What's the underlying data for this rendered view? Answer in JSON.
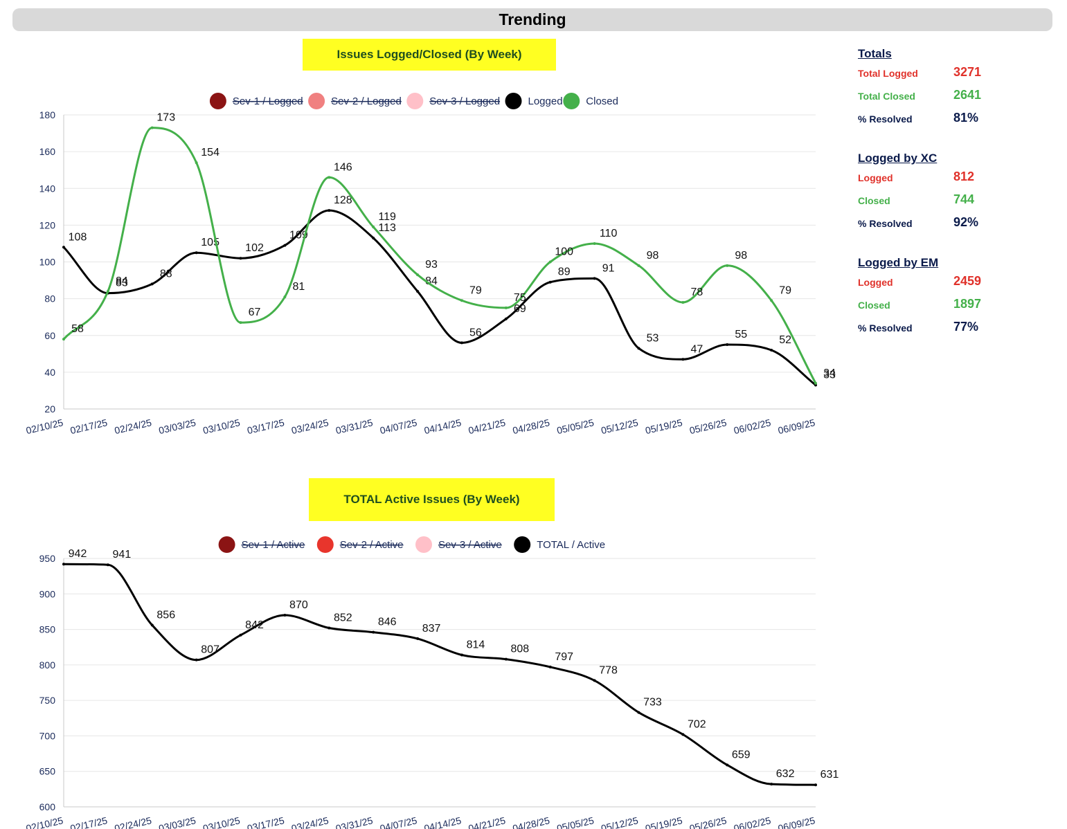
{
  "header": {
    "title": "Trending"
  },
  "colors": {
    "logged": "#000000",
    "closed": "#44b04a",
    "sev1": "#8b1414",
    "sev2_logged": "#f08080",
    "sev2_active": "#e8352c",
    "sev3": "#ffc0c8"
  },
  "side": {
    "sections": [
      {
        "title": "Totals",
        "rows": [
          {
            "label": "Total Logged",
            "value": "3271",
            "color": "red"
          },
          {
            "label": "Total Closed",
            "value": "2641",
            "color": "green"
          },
          {
            "label": "% Resolved",
            "value": "81%",
            "color": "navy"
          }
        ]
      },
      {
        "title": "Logged by XC",
        "rows": [
          {
            "label": "Logged",
            "value": "812",
            "color": "red"
          },
          {
            "label": "Closed",
            "value": "744",
            "color": "green"
          },
          {
            "label": "% Resolved",
            "value": "92%",
            "color": "navy"
          }
        ]
      },
      {
        "title": "Logged by EM",
        "rows": [
          {
            "label": "Logged",
            "value": "2459",
            "color": "red"
          },
          {
            "label": "Closed",
            "value": "1897",
            "color": "green"
          },
          {
            "label": "% Resolved",
            "value": "77%",
            "color": "navy"
          }
        ]
      }
    ]
  },
  "chart_data": [
    {
      "type": "line",
      "title": "Issues Logged/Closed (By Week)",
      "categories": [
        "02/10/25",
        "02/17/25",
        "02/24/25",
        "03/03/25",
        "03/10/25",
        "03/17/25",
        "03/24/25",
        "03/31/25",
        "04/07/25",
        "04/14/25",
        "04/21/25",
        "04/28/25",
        "05/05/25",
        "05/12/25",
        "05/19/25",
        "05/26/25",
        "06/02/25",
        "06/09/25"
      ],
      "ylim": [
        20,
        180
      ],
      "yticks": [
        20,
        40,
        60,
        80,
        100,
        120,
        140,
        160,
        180
      ],
      "grid": true,
      "legend_position": "top",
      "legend": [
        {
          "name": "Sev-1 / Logged",
          "color": "#8b1414",
          "hidden": true
        },
        {
          "name": "Sev-2 / Logged",
          "color": "#f08080",
          "hidden": true
        },
        {
          "name": "Sev-3 / Logged",
          "color": "#ffc0c8",
          "hidden": true
        },
        {
          "name": "Logged",
          "color": "#000000",
          "hidden": false
        },
        {
          "name": "Closed",
          "color": "#44b04a",
          "hidden": false
        }
      ],
      "series": [
        {
          "name": "Logged",
          "color": "#000000",
          "values": [
            108,
            83,
            88,
            105,
            102,
            109,
            128,
            113,
            84,
            56,
            69,
            89,
            91,
            53,
            47,
            55,
            52,
            33
          ]
        },
        {
          "name": "Closed",
          "color": "#44b04a",
          "values": [
            58,
            84,
            173,
            154,
            67,
            81,
            146,
            119,
            93,
            79,
            75,
            100,
            110,
            98,
            78,
            98,
            79,
            34
          ]
        }
      ]
    },
    {
      "type": "line",
      "title": "TOTAL Active Issues (By Week)",
      "categories": [
        "02/10/25",
        "02/17/25",
        "02/24/25",
        "03/03/25",
        "03/10/25",
        "03/17/25",
        "03/24/25",
        "03/31/25",
        "04/07/25",
        "04/14/25",
        "04/21/25",
        "04/28/25",
        "05/05/25",
        "05/12/25",
        "05/19/25",
        "05/26/25",
        "06/02/25",
        "06/09/25"
      ],
      "ylim": [
        600,
        950
      ],
      "yticks": [
        600,
        650,
        700,
        750,
        800,
        850,
        900,
        950
      ],
      "grid": true,
      "legend_position": "top",
      "legend": [
        {
          "name": "Sev-1 / Active",
          "color": "#8b1414",
          "hidden": true
        },
        {
          "name": "Sev-2 / Active",
          "color": "#e8352c",
          "hidden": true
        },
        {
          "name": "Sev-3 / Active",
          "color": "#ffc0c8",
          "hidden": true
        },
        {
          "name": "TOTAL / Active",
          "color": "#000000",
          "hidden": false
        }
      ],
      "series": [
        {
          "name": "TOTAL / Active",
          "color": "#000000",
          "values": [
            942,
            941,
            856,
            807,
            842,
            870,
            852,
            846,
            837,
            814,
            808,
            797,
            778,
            733,
            702,
            659,
            632,
            631
          ]
        }
      ]
    }
  ]
}
